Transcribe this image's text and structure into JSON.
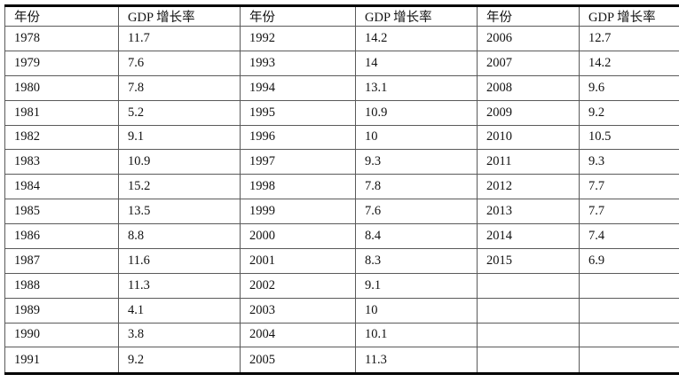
{
  "table": {
    "header": [
      "年份",
      "GDP 增长率",
      "年份",
      "GDP 增长率",
      "年份",
      "GDP 增长率"
    ],
    "rows": [
      [
        "1978",
        "11.7",
        "1992",
        "14.2",
        "2006",
        "12.7"
      ],
      [
        "1979",
        "7.6",
        "1993",
        "14",
        "2007",
        "14.2"
      ],
      [
        "1980",
        "7.8",
        "1994",
        "13.1",
        "2008",
        "9.6"
      ],
      [
        "1981",
        "5.2",
        "1995",
        "10.9",
        "2009",
        "9.2"
      ],
      [
        "1982",
        "9.1",
        "1996",
        "10",
        "2010",
        "10.5"
      ],
      [
        "1983",
        "10.9",
        "1997",
        "9.3",
        "2011",
        "9.3"
      ],
      [
        "1984",
        "15.2",
        "1998",
        "7.8",
        "2012",
        "7.7"
      ],
      [
        "1985",
        "13.5",
        "1999",
        "7.6",
        "2013",
        "7.7"
      ],
      [
        "1986",
        "8.8",
        "2000",
        "8.4",
        "2014",
        "7.4"
      ],
      [
        "1987",
        "11.6",
        "2001",
        "8.3",
        "2015",
        "6.9"
      ],
      [
        "1988",
        "11.3",
        "2002",
        "9.1",
        "",
        ""
      ],
      [
        "1989",
        "4.1",
        "2003",
        "10",
        "",
        ""
      ],
      [
        "1990",
        "3.8",
        "2004",
        "10.1",
        "",
        ""
      ],
      [
        "1991",
        "9.2",
        "2005",
        "11.3",
        "",
        ""
      ]
    ]
  },
  "colors": {
    "thick_rule": "#000000",
    "grid_line": "#5a5a5a",
    "text": "#111111",
    "background": "#ffffff"
  },
  "chart_data": {
    "type": "table",
    "title": "",
    "columns": [
      "年份",
      "GDP 增长率"
    ],
    "years": [
      1978,
      1979,
      1980,
      1981,
      1982,
      1983,
      1984,
      1985,
      1986,
      1987,
      1988,
      1989,
      1990,
      1991,
      1992,
      1993,
      1994,
      1995,
      1996,
      1997,
      1998,
      1999,
      2000,
      2001,
      2002,
      2003,
      2004,
      2005,
      2006,
      2007,
      2008,
      2009,
      2010,
      2011,
      2012,
      2013,
      2014,
      2015
    ],
    "gdp_growth_rate": [
      11.7,
      7.6,
      7.8,
      5.2,
      9.1,
      10.9,
      15.2,
      13.5,
      8.8,
      11.6,
      11.3,
      4.1,
      3.8,
      9.2,
      14.2,
      14,
      13.1,
      10.9,
      10,
      9.3,
      7.8,
      7.6,
      8.4,
      8.3,
      9.1,
      10,
      10.1,
      11.3,
      12.7,
      14.2,
      9.6,
      9.2,
      10.5,
      9.3,
      7.7,
      7.7,
      7.4,
      6.9
    ]
  }
}
